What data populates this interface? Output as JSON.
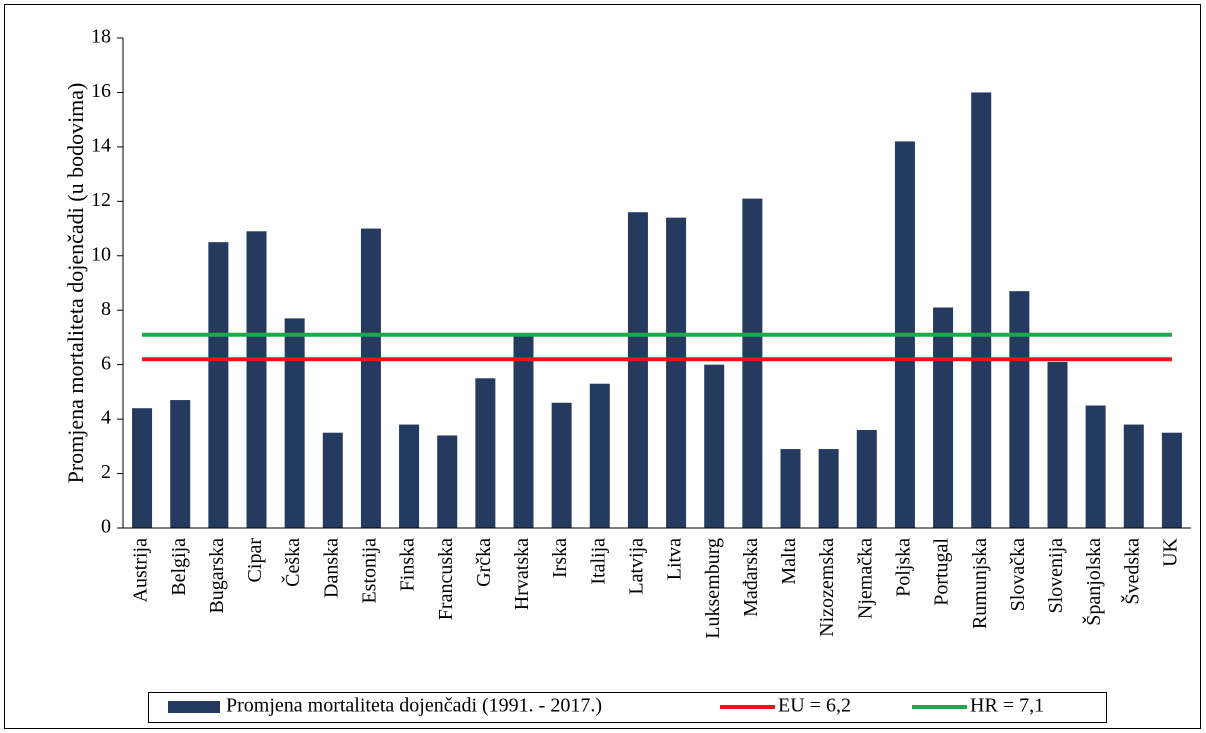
{
  "chart_data": {
    "type": "bar",
    "y_label": "Promjena mortaliteta dojenčadi (u bodovima)",
    "categories": [
      "Austrija",
      "Belgija",
      "Bugarska",
      "Cipar",
      "Češka",
      "Danska",
      "Estonija",
      "Finska",
      "Francuska",
      "Grčka",
      "Hrvatska",
      "Irska",
      "Italija",
      "Latvija",
      "Litva",
      "Luksemburg",
      "Mađarska",
      "Malta",
      "Nizozemska",
      "Njemačka",
      "Poljska",
      "Portugal",
      "Rumunjska",
      "Slovačka",
      "Slovenija",
      "Španjolska",
      "Švedska",
      "UK"
    ],
    "series": [
      {
        "name": "Promjena mortaliteta dojenčadi (1991. - 2017.)",
        "type": "bar",
        "color": "#243a5e",
        "values": [
          4.4,
          4.7,
          10.5,
          10.9,
          7.7,
          3.5,
          11.0,
          3.8,
          3.4,
          5.5,
          7.1,
          4.6,
          5.3,
          11.6,
          11.4,
          6.0,
          12.1,
          2.9,
          2.9,
          3.6,
          14.2,
          8.1,
          16.0,
          8.7,
          6.1,
          4.5,
          3.8,
          3.5
        ]
      },
      {
        "name": "EU = 6,2",
        "type": "line",
        "color": "#e8141c",
        "values": [
          6.2,
          6.2,
          6.2,
          6.2,
          6.2,
          6.2,
          6.2,
          6.2,
          6.2,
          6.2,
          6.2,
          6.2,
          6.2,
          6.2,
          6.2,
          6.2,
          6.2,
          6.2,
          6.2,
          6.2,
          6.2,
          6.2,
          6.2,
          6.2,
          6.2,
          6.2,
          6.2,
          6.2
        ]
      },
      {
        "name": "HR = 7,1",
        "type": "line",
        "color": "#1fa84a",
        "values": [
          7.1,
          7.1,
          7.1,
          7.1,
          7.1,
          7.1,
          7.1,
          7.1,
          7.1,
          7.1,
          7.1,
          7.1,
          7.1,
          7.1,
          7.1,
          7.1,
          7.1,
          7.1,
          7.1,
          7.1,
          7.1,
          7.1,
          7.1,
          7.1,
          7.1,
          7.1,
          7.1,
          7.1
        ]
      }
    ],
    "ylim": [
      0,
      18
    ],
    "yticks": [
      0,
      2,
      4,
      6,
      8,
      10,
      12,
      14,
      16,
      18
    ],
    "grid": false,
    "legend": "bottom"
  }
}
